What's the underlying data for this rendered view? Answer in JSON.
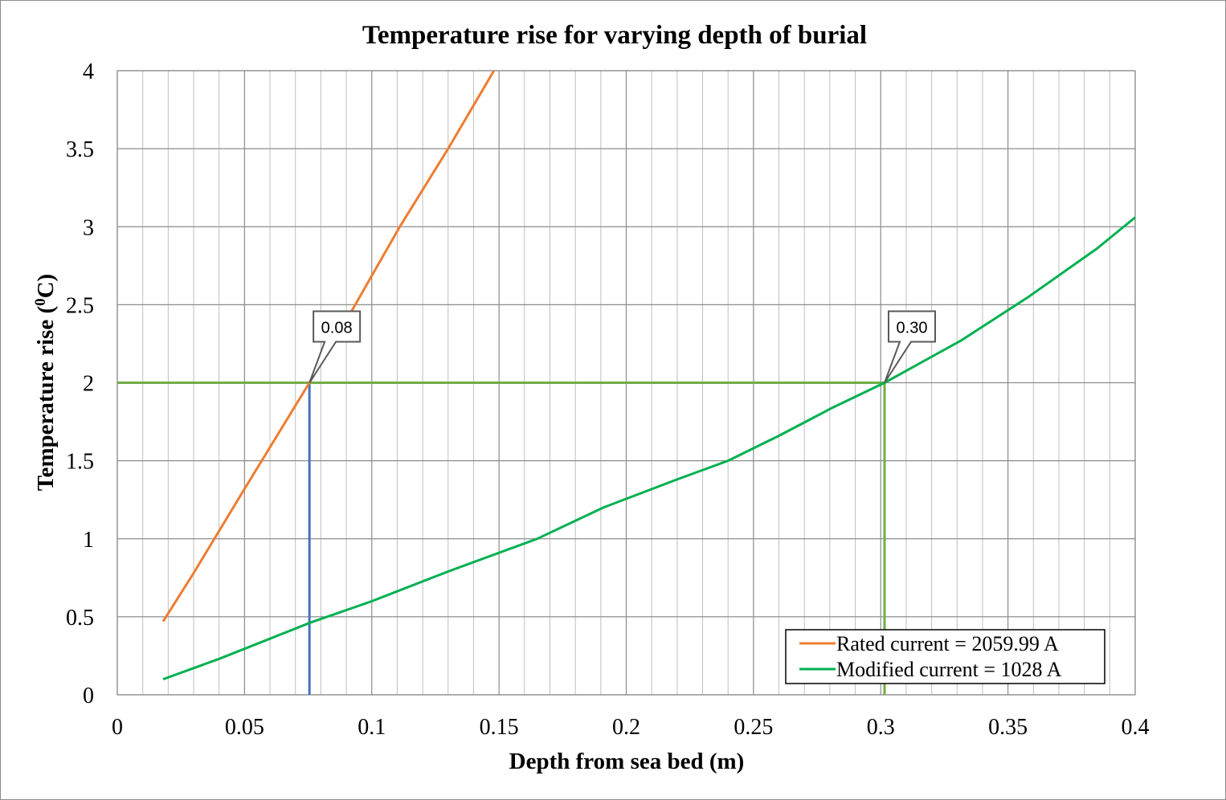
{
  "chart_data": {
    "type": "line",
    "title": "Temperature rise for varying depth of burial",
    "xlabel": "Depth from sea bed (m)",
    "ylabel": "Temperature rise (0C)",
    "ylabel_parts": {
      "main": "Temperature rise (",
      "superscript": "0",
      "unit": "C)"
    },
    "xlim": [
      0,
      0.4
    ],
    "ylim": [
      0,
      4
    ],
    "x_ticks": [
      "0",
      "0.05",
      "0.1",
      "0.15",
      "0.2",
      "0.25",
      "0.3",
      "0.35",
      "0.4"
    ],
    "y_ticks": [
      "0",
      "0.5",
      "1",
      "1.5",
      "2",
      "2.5",
      "3",
      "3.5",
      "4"
    ],
    "x_minor_step": 0.01,
    "grid": true,
    "legend_position": "lower right (inside plot)",
    "series": [
      {
        "name": "Rated current = 2059.99 A",
        "color": "#ED7D31",
        "x": [
          0.018,
          0.03,
          0.05,
          0.0755,
          0.09,
          0.111,
          0.13,
          0.148
        ],
        "y": [
          0.47,
          0.78,
          1.32,
          2.0,
          2.4,
          3.0,
          3.5,
          4.0
        ]
      },
      {
        "name": "Modified current = 1028 A",
        "color": "#00B050",
        "x": [
          0.018,
          0.04,
          0.0755,
          0.1,
          0.13,
          0.165,
          0.191,
          0.22,
          0.24,
          0.26,
          0.281,
          0.3015,
          0.3315,
          0.358,
          0.385,
          0.4
        ],
        "y": [
          0.1,
          0.23,
          0.46,
          0.6,
          0.79,
          1.0,
          1.2,
          1.38,
          1.5,
          1.66,
          1.84,
          2.0,
          2.27,
          2.55,
          2.86,
          3.06
        ]
      }
    ],
    "reference_lines": [
      {
        "type": "horizontal",
        "y": 2,
        "x_from": 0,
        "x_to": 0.3015,
        "color": "#70AD47"
      },
      {
        "type": "vertical",
        "x": 0.0755,
        "y_from": 0,
        "y_to": 2,
        "color": "#4472C4"
      },
      {
        "type": "vertical",
        "x": 0.3015,
        "y_from": 0,
        "y_to": 2,
        "color": "#70AD47"
      }
    ],
    "annotations": [
      {
        "text": "0.08",
        "point_x": 0.0755,
        "point_y": 2.0
      },
      {
        "text": "0.30",
        "point_x": 0.3015,
        "point_y": 2.0
      }
    ]
  }
}
